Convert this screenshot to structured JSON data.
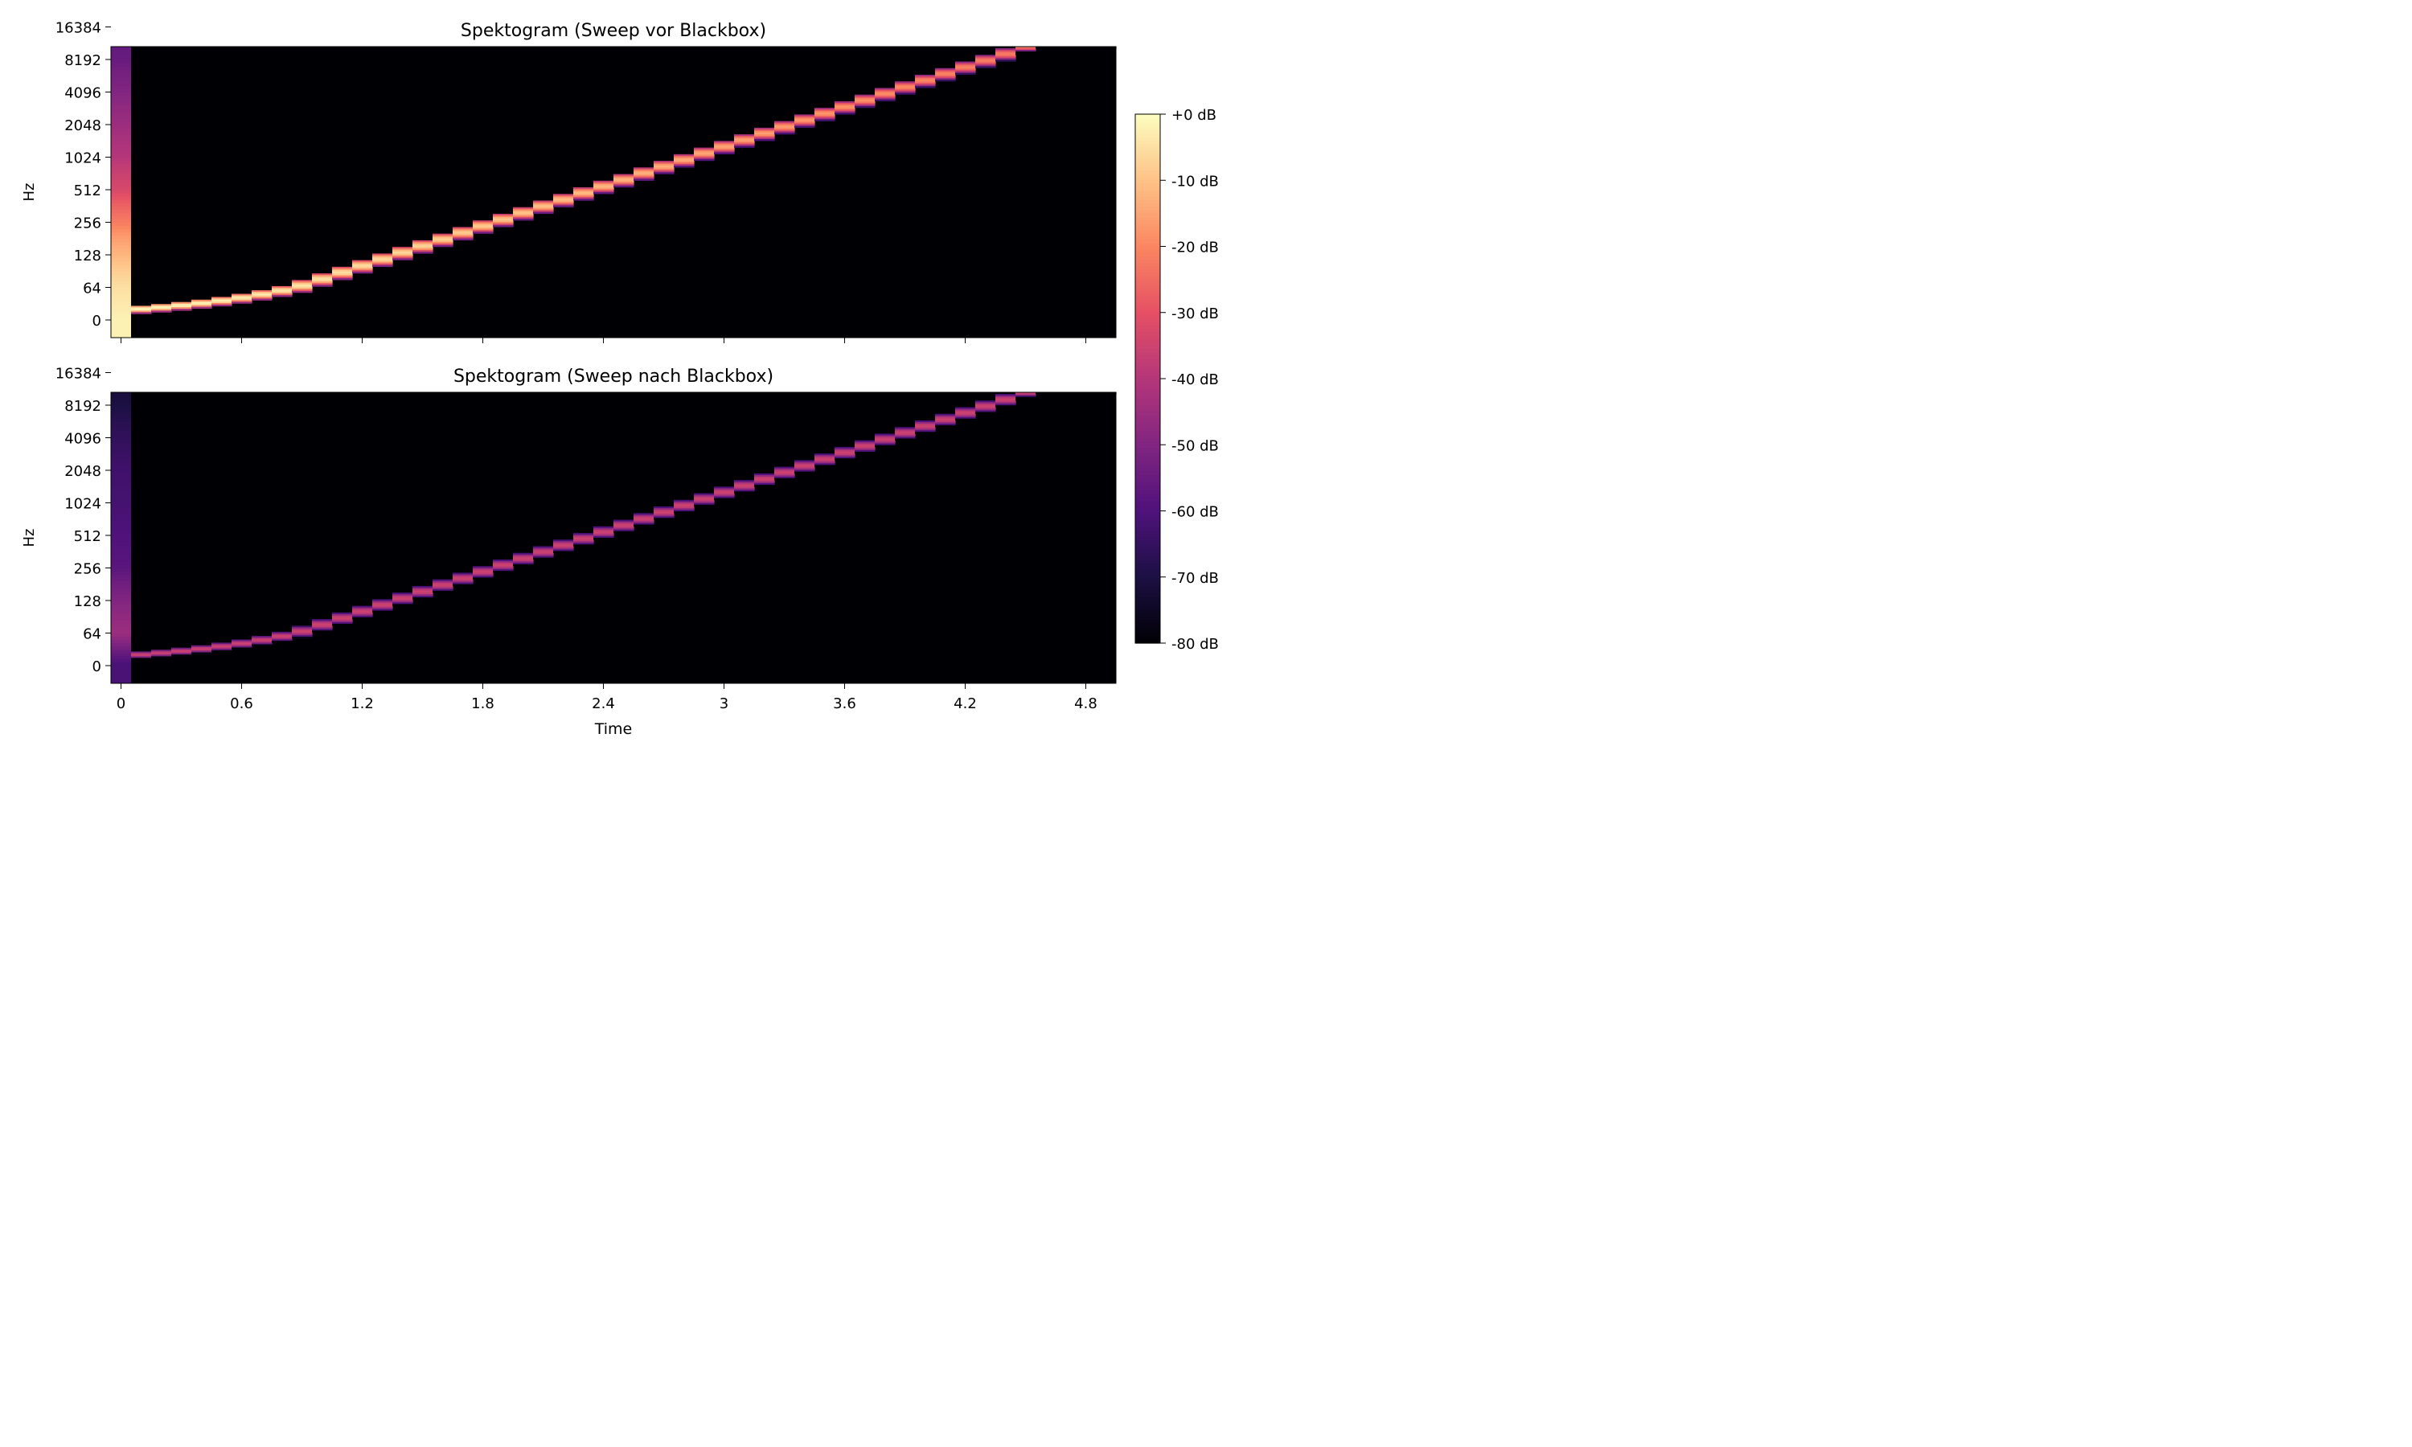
{
  "chart_data": [
    {
      "type": "heatmap",
      "title": "Spektogram (Sweep vor Blackbox)",
      "xlabel": "",
      "ylabel": "Hz",
      "xlim": [
        -0.05,
        4.95
      ],
      "x_ticks": [
        0,
        0.6,
        1.2,
        1.8,
        2.4,
        3,
        3.6,
        4.2,
        4.8
      ],
      "x_tick_labels": [],
      "y_scale": "symlog",
      "y_ticks": [
        0,
        64,
        128,
        256,
        512,
        1024,
        2048,
        4096,
        8192,
        16384
      ],
      "y_tick_labels": [
        "0",
        "64",
        "128",
        "256",
        "512",
        "1024",
        "2048",
        "4096",
        "8192",
        "16384"
      ],
      "background_db": -80,
      "sweep": {
        "start_time": 0.05,
        "end_time": 4.95,
        "start_hz": 20,
        "end_hz": 20000,
        "peak_db_start": 0,
        "peak_db_end": -25
      },
      "first_column": {
        "time_range": [
          -0.05,
          0.05
        ],
        "db_by_hz": [
          [
            0,
            -2
          ],
          [
            64,
            -5
          ],
          [
            128,
            -12
          ],
          [
            256,
            -22
          ],
          [
            512,
            -33
          ],
          [
            1024,
            -40
          ],
          [
            2048,
            -45
          ],
          [
            4096,
            -50
          ],
          [
            8192,
            -55
          ],
          [
            16384,
            -58
          ]
        ]
      }
    },
    {
      "type": "heatmap",
      "title": "Spektogram (Sweep nach Blackbox)",
      "xlabel": "Time",
      "ylabel": "Hz",
      "xlim": [
        -0.05,
        4.95
      ],
      "x_ticks": [
        0,
        0.6,
        1.2,
        1.8,
        2.4,
        3,
        3.6,
        4.2,
        4.8
      ],
      "x_tick_labels": [
        "0",
        "0.6",
        "1.2",
        "1.8",
        "2.4",
        "3",
        "3.6",
        "4.2",
        "4.8"
      ],
      "y_scale": "symlog",
      "y_ticks": [
        0,
        64,
        128,
        256,
        512,
        1024,
        2048,
        4096,
        8192,
        16384
      ],
      "y_tick_labels": [
        "0",
        "64",
        "128",
        "256",
        "512",
        "1024",
        "2048",
        "4096",
        "8192",
        "16384"
      ],
      "background_db": -80,
      "sweep": {
        "start_time": 0.05,
        "end_time": 4.95,
        "start_hz": 20,
        "end_hz": 20000,
        "peak_db_start": -35,
        "peak_db_end": -35
      },
      "first_column": {
        "time_range": [
          -0.05,
          0.05
        ],
        "db_by_hz": [
          [
            0,
            -62
          ],
          [
            64,
            -45
          ],
          [
            128,
            -50
          ],
          [
            256,
            -58
          ],
          [
            512,
            -60
          ],
          [
            1024,
            -62
          ],
          [
            2048,
            -63
          ],
          [
            4096,
            -66
          ],
          [
            8192,
            -70
          ],
          [
            16384,
            -74
          ]
        ]
      }
    }
  ],
  "colorbar": {
    "colormap": "magma",
    "range_db": [
      -80,
      0
    ],
    "ticks": [
      0,
      -10,
      -20,
      -30,
      -40,
      -50,
      -60,
      -70,
      -80
    ],
    "tick_labels": [
      "+0 dB",
      "-10 dB",
      "-20 dB",
      "-30 dB",
      "-40 dB",
      "-50 dB",
      "-60 dB",
      "-70 dB",
      "-80 dB"
    ]
  }
}
